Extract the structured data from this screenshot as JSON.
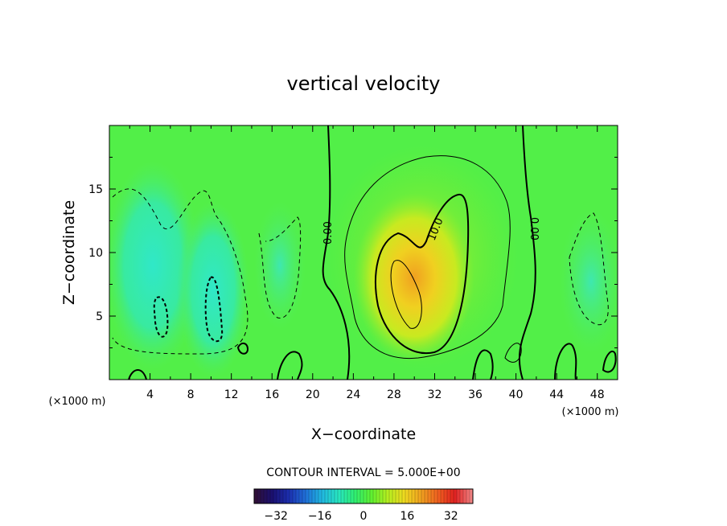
{
  "chart_data": {
    "type": "heatmap",
    "title": "vertical velocity",
    "xlabel": "X−coordinate",
    "ylabel": "Z−coordinate",
    "x_unit_left": "(×1000 m)",
    "x_unit_right": "(×1000 m)",
    "xlim": [
      0,
      50
    ],
    "ylim": [
      0,
      20
    ],
    "x_ticks": [
      "4",
      "8",
      "12",
      "16",
      "20",
      "24",
      "28",
      "32",
      "36",
      "40",
      "44",
      "48"
    ],
    "y_ticks": [
      "5",
      "10",
      "15"
    ],
    "contour_interval_text": "CONTOUR INTERVAL = 5.000E+00",
    "contour_labels": [
      "0.00",
      "10.0",
      "0.00"
    ],
    "colorbar": {
      "range": [
        -40,
        40
      ],
      "tick_labels": [
        "−32",
        "−16",
        "0",
        "16",
        "32"
      ],
      "colors": [
        "#30103a",
        "#1a1070",
        "#1c2fb0",
        "#1f6fd8",
        "#20b8e0",
        "#28e6c0",
        "#30ef70",
        "#60f030",
        "#b8ee20",
        "#f0d820",
        "#f0a020",
        "#f06020",
        "#e02020",
        "#f08080"
      ]
    },
    "grid": false,
    "features": [
      {
        "type": "updraft_max",
        "x": 30,
        "z": 6.5,
        "value": 20
      },
      {
        "type": "downdraft",
        "x": 5,
        "z": 5,
        "value": -10
      },
      {
        "type": "downdraft",
        "x": 10,
        "z": 5.5,
        "value": -10
      },
      {
        "type": "downdraft",
        "x": 15,
        "z": 10,
        "value": -5
      },
      {
        "type": "downdraft",
        "x": 47,
        "z": 8,
        "value": -5
      }
    ]
  }
}
